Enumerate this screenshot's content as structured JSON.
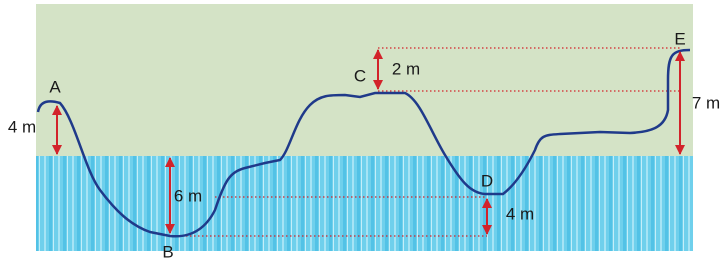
{
  "points": [
    "A",
    "B",
    "C",
    "D",
    "E"
  ],
  "heights": [
    "4 m",
    "6 m",
    "2 m",
    "4 m",
    "7 m"
  ]
}
